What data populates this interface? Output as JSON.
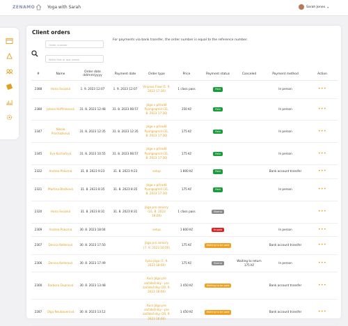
{
  "header": {
    "logo": "ZENAMO",
    "studio": "Yoga with Sarah",
    "user": "Sarah Jones"
  },
  "page": {
    "title": "Client orders",
    "search_order": "Order number",
    "search_name": "Write first or last name",
    "note": "For payments via bank transfer, the order number is equal to the reference number."
  },
  "table": {
    "headers": [
      "#",
      "Name",
      "Order date dd/mm/yyyy",
      "Payment date",
      "Order type",
      "Price",
      "Payment status",
      "Canceled",
      "Payment method",
      "Action"
    ],
    "status_colors": {
      "Paid": "#1a9a3a",
      "Storno": "#8a8a8a",
      "Unpaid": "#e02020",
      "Waiting to be paid": "#f0a020"
    },
    "rows": [
      {
        "id": "2388",
        "name": "Hana Svojská",
        "order_date": "1. 9. 2023 12:07",
        "payment_date": "1. 9. 2023 12:07",
        "order_type": "Vinyasa Flow (1. 9. 2023 17:30)",
        "price": "1 class pass",
        "status": "Paid",
        "method": "In person"
      },
      {
        "id": "2380",
        "name": "Jolana Hoffmanová",
        "order_date": "31. 8. 2023 12:48",
        "payment_date": "31. 8. 2023 08:57",
        "order_type": "Jóga v přírodě Pyongsqmill (31. 8. 2023 17:30)",
        "price": "150 Kč",
        "status": "Paid",
        "method": "In person"
      },
      {
        "id": "2347",
        "name": "Nikola Procházková",
        "order_date": "31. 8. 2023 12:35",
        "payment_date": "31. 8. 2023 12:35",
        "order_type": "Jóga v přírodě Pyongsqmill (31. 8. 2023 17:30)",
        "price": "175 Kč",
        "status": "Paid",
        "method": "In person"
      },
      {
        "id": "2345",
        "name": "Eva Kuchařová",
        "order_date": "31. 8. 2023 10:55",
        "payment_date": "31. 8. 2023 08:57",
        "order_type": "Jóga v přírodě Pyongsqmill (31. 8. 2023 17:30)",
        "price": "175 Kč",
        "status": "Paid",
        "method": "In person"
      },
      {
        "id": "2322",
        "name": "Andrea Pokorná",
        "order_date": "31. 8. 2023 9:23",
        "payment_date": "31. 8. 2023 9:23",
        "order_type": "setup",
        "price": "1 800 Kč",
        "status": "Paid",
        "method": "Bank account transfer"
      },
      {
        "id": "2321",
        "name": "Martina Blažková",
        "order_date": "31. 8. 2023 8:35",
        "payment_date": "31. 8. 2023 8:35",
        "order_type": "Jóga v přírodě Pyongsqmill (31. 8. 2023 17:30)",
        "price": "175 Kč",
        "status": "Paid",
        "method": "In person"
      },
      {
        "id": "2320",
        "name": "Hana Svojská",
        "order_date": "31. 8. 2023 8:31",
        "payment_date": "31. 8. 2023 8:31",
        "order_type": "Jóga pro seniory (31. 8. 2023 18:00)",
        "price": "1 class pass",
        "status": "Storno"
      },
      {
        "id": "2309",
        "name": "Andrea Pokorná",
        "order_date": "30. 8. 2023 18:04",
        "order_type": "setup",
        "price": "1 800 Kč",
        "status": "Unpaid",
        "method": "In person"
      },
      {
        "id": "2307",
        "name": "Denisa Kellerová",
        "order_date": "30. 8. 2023 17:50",
        "order_type": "Jóga pro seniory (7. 9. 2023 18:00)",
        "price": "175 Kč",
        "status": "Waiting to be paid",
        "method": "Bank account transfer"
      },
      {
        "id": "2306",
        "name": "Denisa Kellerová",
        "order_date": "30. 8. 2023 17:49",
        "order_type": "Fyzio jóga (7. 9. 2023 18:00)",
        "price": "175 Kč",
        "status": "Storno",
        "canceled": "Waiting to return 175 Kč",
        "method": "In person"
      },
      {
        "id": "2300",
        "name": "Barbora Dupnová",
        "order_date": "30. 8. 2023 13:48",
        "order_type": "Kurz Jóga pro začátečníky - pro začátečníky (20. 9. 2023 18:00)",
        "price": "1 450 Kč",
        "status": "Waiting to be paid",
        "method": "Bank account transfer"
      },
      {
        "id": "2287",
        "name": "Olga Neubauerová",
        "order_date": "30. 8. 2023 13:12",
        "order_type": "Kurz Jóga pro začátečníky - pro začátečníky (20. 9. 2023 18:00)",
        "price": "1 450 Kč",
        "status": "Waiting to be paid",
        "method": "Bank account transfer"
      }
    ]
  }
}
